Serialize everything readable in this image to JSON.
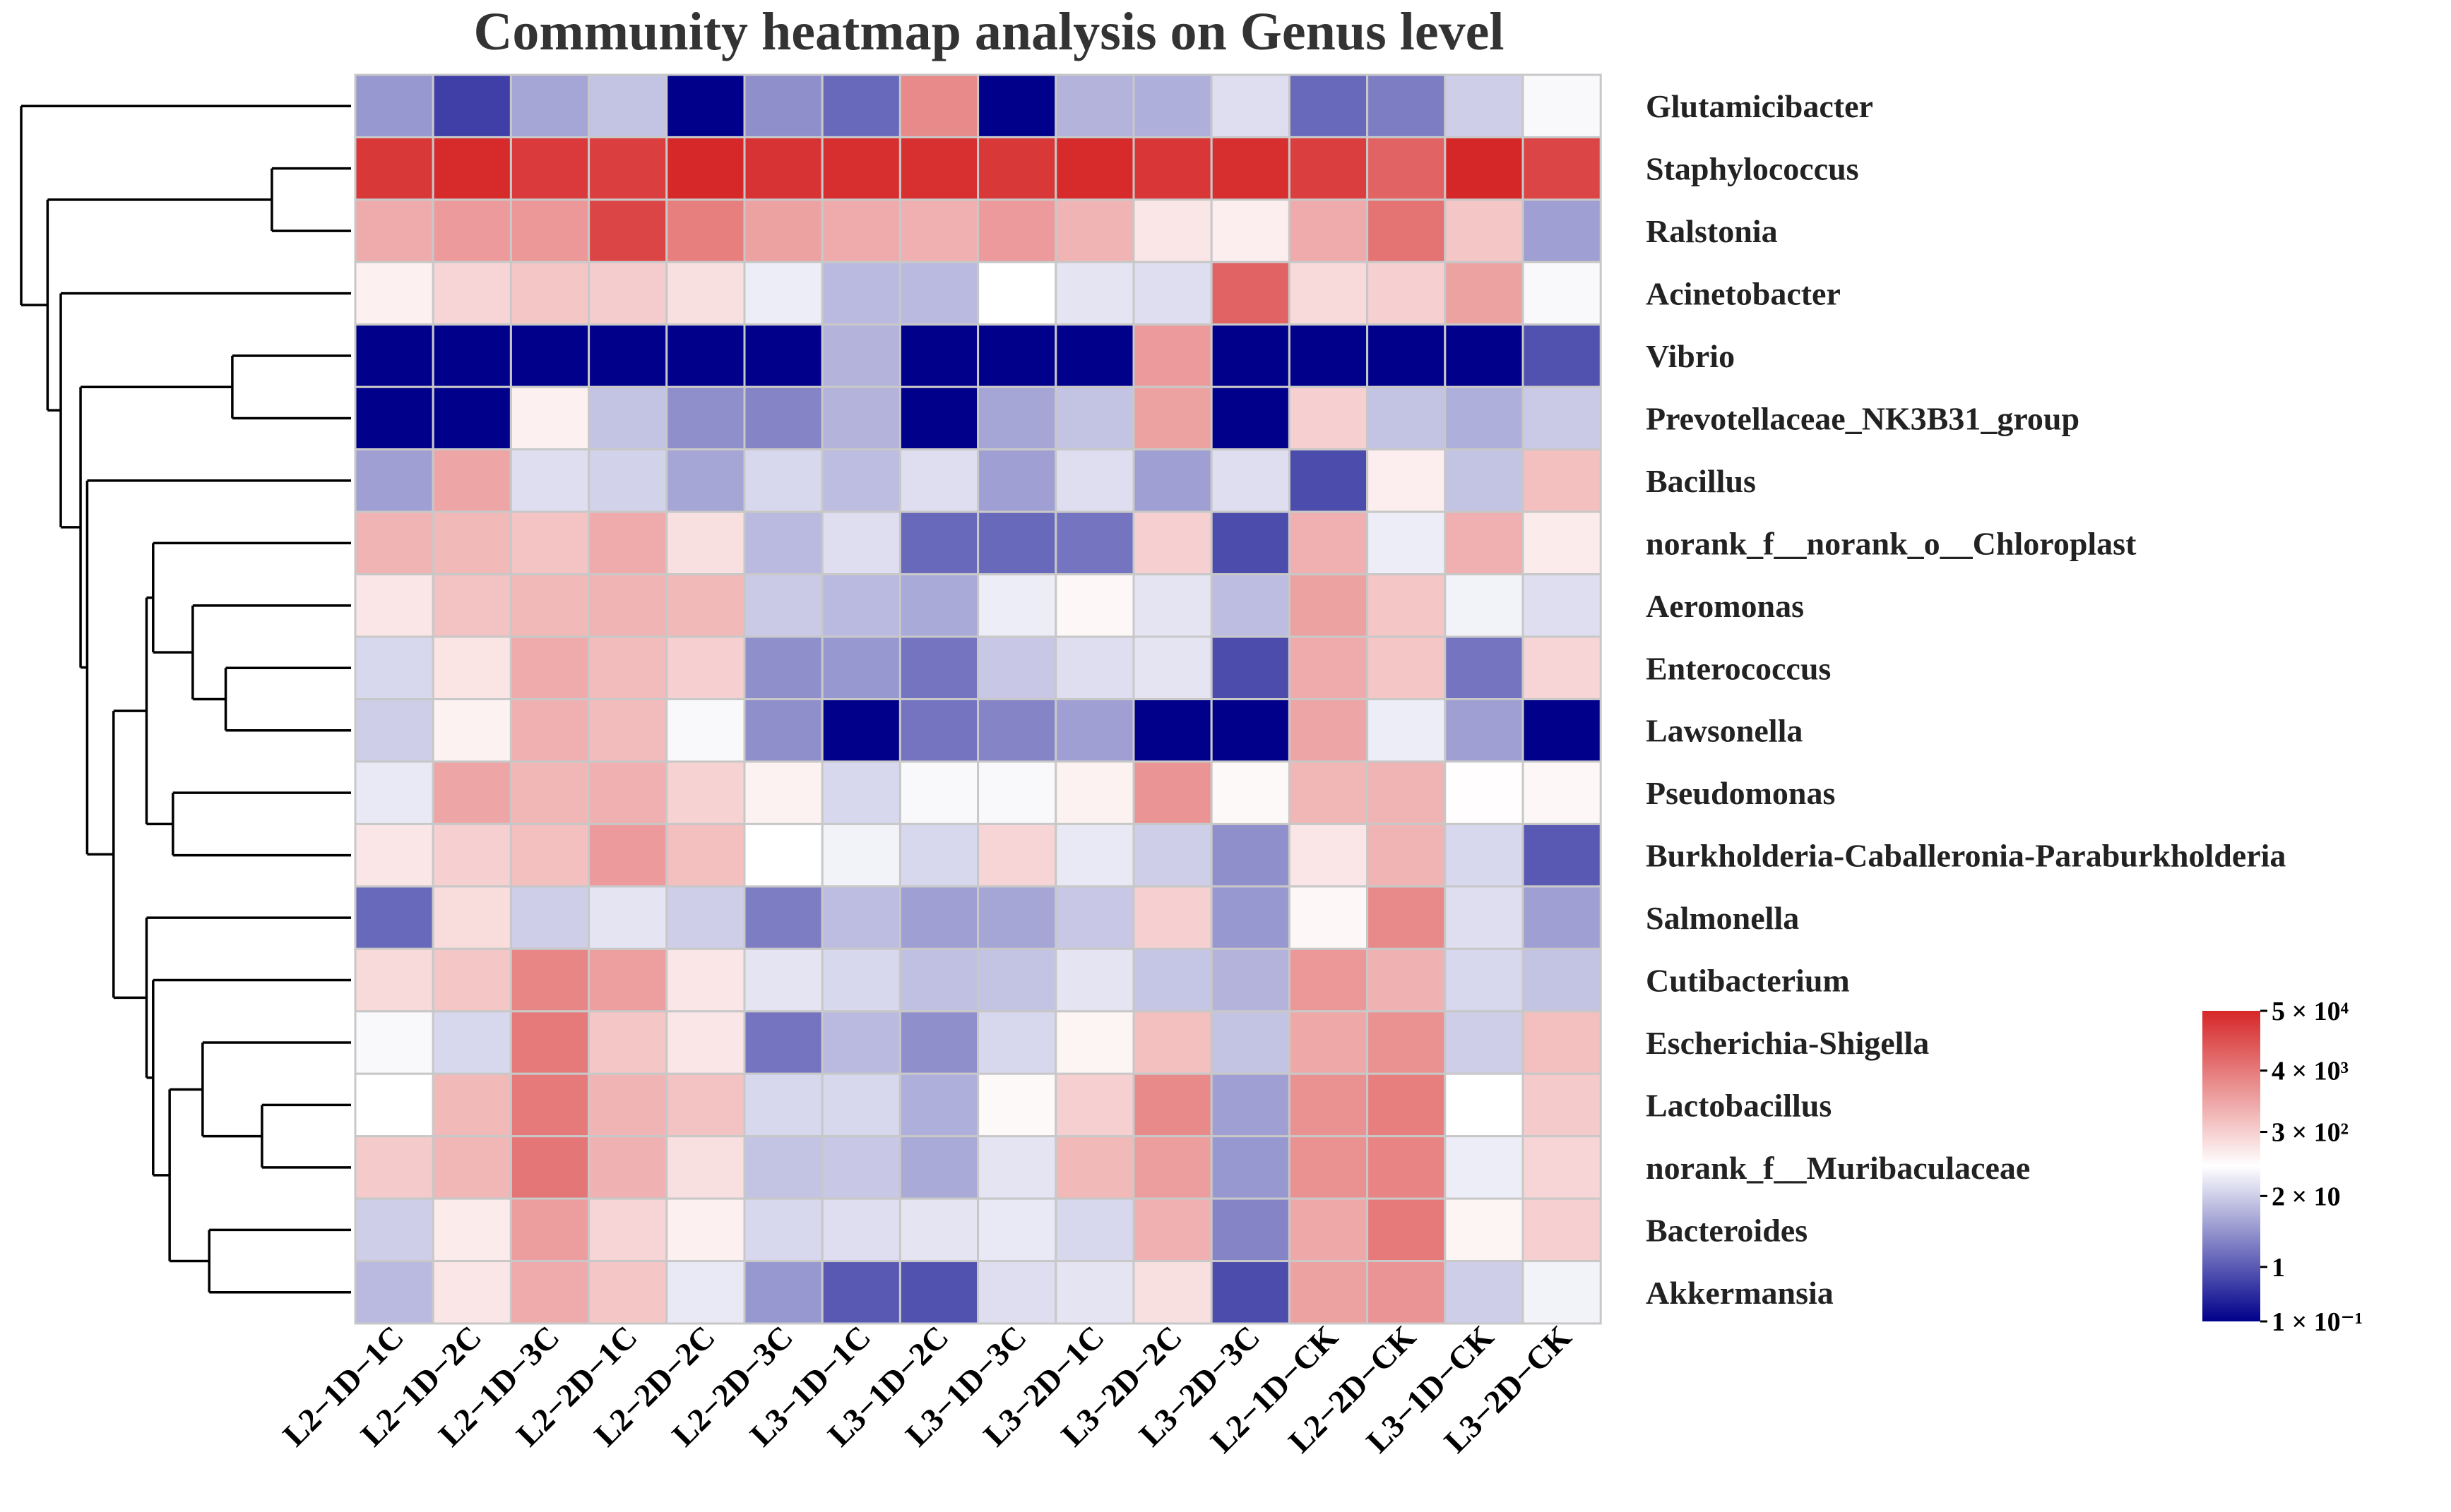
{
  "chart_data": {
    "type": "heatmap",
    "title": "Community heatmap analysis on Genus level",
    "columns": [
      "L2−1D−1C",
      "L2−1D−2C",
      "L2−1D−3C",
      "L2−2D−1C",
      "L2−2D−2C",
      "L2−2D−3C",
      "L3−1D−1C",
      "L3−1D−2C",
      "L3−1D−3C",
      "L3−2D−1C",
      "L3−2D−2C",
      "L3−2D−3C",
      "L2−1D−CK",
      "L2−2D−CK",
      "L3−1D−CK",
      "L3−2D−CK"
    ],
    "rows": [
      "Glutamicibacter",
      "Staphylococcus",
      "Ralstonia",
      "Acinetobacter",
      "Vibrio",
      "Prevotellaceae_NK3B31_group",
      "Bacillus",
      "norank_f__norank_o__Chloroplast",
      "Aeromonas",
      "Enterococcus",
      "Lawsonella",
      "Pseudomonas",
      "Burkholderia-Caballeronia-Paraburkholderia",
      "Salmonella",
      "Cutibacterium",
      "Escherichia-Shigella",
      "Lactobacillus",
      "norank_f__Muribaculaceae",
      "Bacteroides",
      "Akkermansia"
    ],
    "values": [
      [
        5,
        0.5,
        7,
        15,
        0.1,
        4,
        1.5,
        2500,
        0.1,
        10,
        9,
        30,
        1.5,
        2.5,
        20,
        60
      ],
      [
        30000,
        45000,
        28000,
        25000,
        48000,
        35000,
        40000,
        38000,
        30000,
        45000,
        32000,
        40000,
        25000,
        8000,
        50000,
        20000
      ],
      [
        900,
        1500,
        1600,
        20000,
        3500,
        1200,
        900,
        800,
        1500,
        700,
        150,
        120,
        900,
        5000,
        400,
        6
      ],
      [
        110,
        250,
        400,
        330,
        180,
        45,
        12,
        12,
        70,
        35,
        30,
        8000,
        220,
        300,
        1200,
        60
      ],
      [
        0.1,
        0.1,
        0.1,
        0.1,
        0.1,
        0.1,
        10,
        0.1,
        0.1,
        0.1,
        1500,
        0.1,
        0.1,
        0.1,
        0.1,
        0.8
      ],
      [
        0.1,
        0.1,
        110,
        15,
        4,
        3,
        10,
        0.1,
        7,
        15,
        1200,
        0.1,
        300,
        15,
        9,
        18
      ],
      [
        6,
        1100,
        30,
        22,
        7,
        25,
        13,
        30,
        6,
        30,
        6,
        30,
        0.7,
        120,
        15,
        500
      ],
      [
        700,
        600,
        420,
        900,
        180,
        12,
        30,
        1.5,
        1.5,
        2,
        300,
        0.7,
        800,
        45,
        800,
        130
      ],
      [
        150,
        450,
        600,
        700,
        600,
        18,
        12,
        8,
        45,
        90,
        35,
        13,
        1200,
        400,
        50,
        30
      ],
      [
        25,
        160,
        900,
        550,
        300,
        4,
        5,
        2,
        17,
        30,
        35,
        0.7,
        900,
        400,
        2,
        250
      ],
      [
        20,
        105,
        800,
        550,
        60,
        4,
        0.1,
        2,
        3,
        6,
        0.1,
        0.1,
        1100,
        45,
        6,
        0.1
      ],
      [
        40,
        1100,
        650,
        800,
        280,
        105,
        25,
        60,
        60,
        105,
        1800,
        85,
        650,
        700,
        75,
        90
      ],
      [
        150,
        300,
        500,
        1500,
        500,
        70,
        50,
        25,
        250,
        40,
        20,
        4,
        150,
        700,
        25,
        1
      ],
      [
        1.5,
        200,
        20,
        35,
        20,
        2.5,
        13,
        6,
        7,
        17,
        300,
        5,
        90,
        2500,
        30,
        6
      ],
      [
        220,
        400,
        2800,
        1300,
        150,
        35,
        25,
        14,
        15,
        35,
        16,
        10,
        1600,
        750,
        25,
        15
      ],
      [
        60,
        25,
        4000,
        400,
        150,
        2,
        12,
        4,
        25,
        100,
        500,
        15,
        1000,
        2000,
        20,
        500
      ],
      [
        70,
        600,
        4000,
        700,
        450,
        25,
        25,
        9,
        85,
        300,
        2500,
        6,
        2000,
        3500,
        70,
        350
      ],
      [
        350,
        650,
        4500,
        750,
        180,
        15,
        17,
        8,
        35,
        600,
        1400,
        5,
        2000,
        3000,
        45,
        250
      ],
      [
        20,
        130,
        1400,
        250,
        110,
        25,
        30,
        35,
        40,
        25,
        800,
        3,
        1000,
        4000,
        100,
        300
      ],
      [
        12,
        150,
        900,
        400,
        40,
        5,
        1,
        0.8,
        30,
        35,
        180,
        0.7,
        1200,
        1800,
        20,
        50
      ]
    ],
    "colorbar": {
      "scale": "log",
      "min": 0.1,
      "max": 50000,
      "colors": [
        "#00008b",
        "#ffffff",
        "#d62728"
      ],
      "tick_values": [
        0.1,
        1,
        20,
        300,
        4000,
        50000
      ],
      "tick_labels": [
        "1 × 10⁻¹",
        "1",
        "2 × 10",
        "3 × 10²",
        "4 × 10³",
        "5 × 10⁴"
      ]
    },
    "row_dendrogram": true,
    "xlabel": "",
    "ylabel": ""
  }
}
